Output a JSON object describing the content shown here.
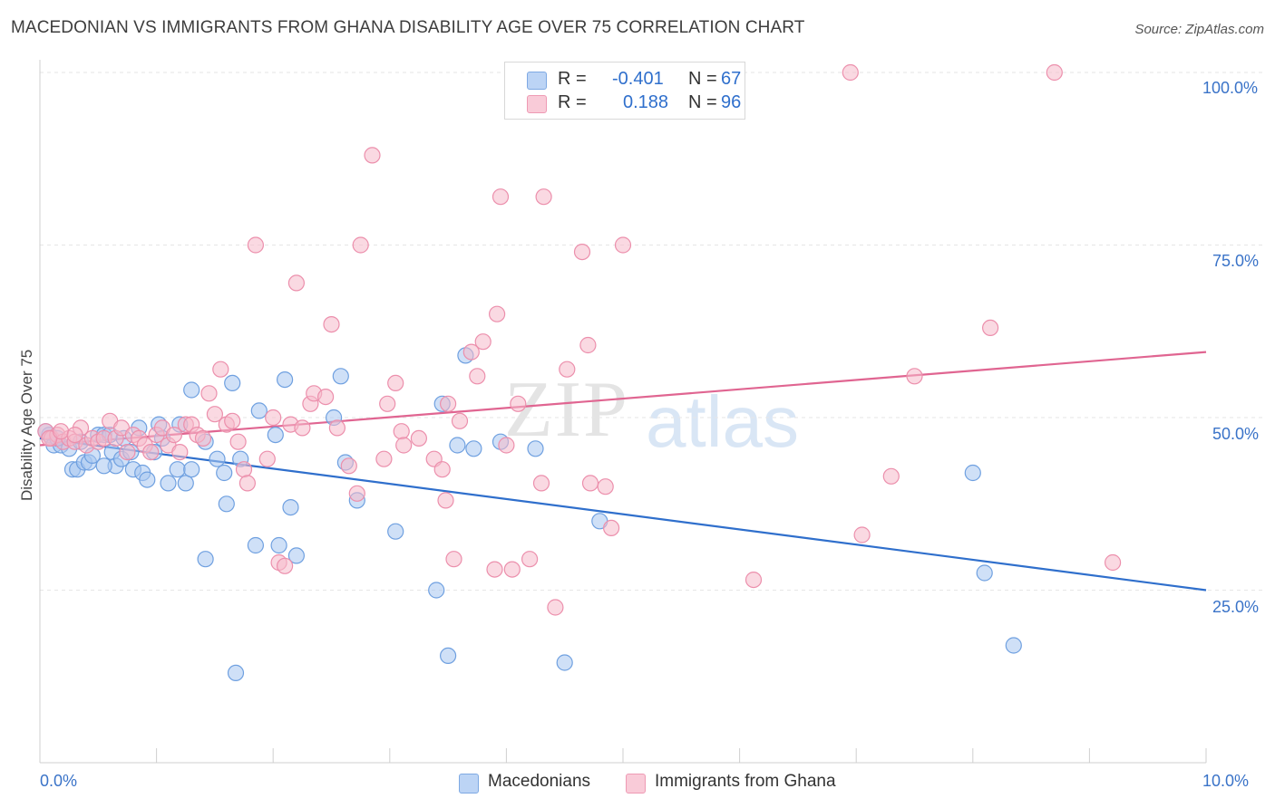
{
  "header": {
    "title": "MACEDONIAN VS IMMIGRANTS FROM GHANA DISABILITY AGE OVER 75 CORRELATION CHART",
    "source": "Source: ZipAtlas.com"
  },
  "watermark": {
    "part1": "ZIP",
    "part2": "atlas"
  },
  "legend": {
    "rows": [
      {
        "r_label": "R =",
        "r_value": "-0.401",
        "n_label": "N =",
        "n_value": "67",
        "color": "#a8c6f0"
      },
      {
        "r_label": "R =",
        "r_value": "0.188",
        "n_label": "N =",
        "n_value": "96",
        "color": "#f5b9cb"
      }
    ]
  },
  "bottom_legend": {
    "items": [
      {
        "label": "Macedonians",
        "color": "#a8c6f0"
      },
      {
        "label": "Immigrants from Ghana",
        "color": "#f5b9cb"
      }
    ]
  },
  "axes": {
    "ylabel": "Disability Age Over 75",
    "x_min_label": "0.0%",
    "x_max_label": "10.0%",
    "y_ticks": [
      "100.0%",
      "75.0%",
      "50.0%",
      "25.0%"
    ]
  },
  "chart_data": {
    "type": "scatter",
    "title": "MACEDONIAN VS IMMIGRANTS FROM GHANA DISABILITY AGE OVER 75 CORRELATION CHART",
    "xlabel": "",
    "ylabel": "Disability Age Over 75",
    "xlim": [
      0,
      10
    ],
    "ylim": [
      0,
      100
    ],
    "x_unit": "%",
    "y_unit": "%",
    "grid": true,
    "legend_position": "bottom",
    "series": [
      {
        "name": "Macedonians",
        "color": "#6fa0e0",
        "fill": "#a8c6f0",
        "trend": {
          "x": [
            0,
            10
          ],
          "y": [
            47,
            25
          ],
          "color": "#2f6fcc"
        },
        "points": [
          [
            0.08,
            47.5
          ],
          [
            0.12,
            46
          ],
          [
            0.18,
            46
          ],
          [
            0.25,
            45.5
          ],
          [
            0.28,
            42.5
          ],
          [
            0.32,
            42.5
          ],
          [
            0.38,
            43.5
          ],
          [
            0.42,
            43.5
          ],
          [
            0.45,
            44.5
          ],
          [
            0.5,
            47.5
          ],
          [
            0.55,
            47.5
          ],
          [
            0.6,
            47.5
          ],
          [
            0.62,
            45
          ],
          [
            0.65,
            43
          ],
          [
            0.7,
            44
          ],
          [
            0.72,
            47
          ],
          [
            0.78,
            45
          ],
          [
            0.8,
            42.5
          ],
          [
            0.85,
            48.5
          ],
          [
            0.88,
            42
          ],
          [
            0.92,
            41
          ],
          [
            0.98,
            45
          ],
          [
            1.02,
            49
          ],
          [
            1.05,
            47
          ],
          [
            1.1,
            40.5
          ],
          [
            1.18,
            42.5
          ],
          [
            1.2,
            49
          ],
          [
            1.25,
            40.5
          ],
          [
            1.3,
            42.5
          ],
          [
            1.3,
            54
          ],
          [
            1.42,
            46.5
          ],
          [
            1.42,
            29.5
          ],
          [
            1.52,
            44
          ],
          [
            1.58,
            42
          ],
          [
            1.6,
            37.5
          ],
          [
            1.65,
            55
          ],
          [
            1.68,
            13
          ],
          [
            1.72,
            44
          ],
          [
            1.85,
            31.5
          ],
          [
            1.88,
            51
          ],
          [
            2.02,
            47.5
          ],
          [
            2.05,
            31.5
          ],
          [
            2.1,
            55.5
          ],
          [
            2.15,
            37
          ],
          [
            2.2,
            30
          ],
          [
            2.52,
            50
          ],
          [
            2.58,
            56
          ],
          [
            2.62,
            43.5
          ],
          [
            2.72,
            38
          ],
          [
            3.05,
            33.5
          ],
          [
            3.4,
            25
          ],
          [
            3.45,
            52
          ],
          [
            3.5,
            15.5
          ],
          [
            3.58,
            46
          ],
          [
            3.72,
            45.5
          ],
          [
            3.65,
            59
          ],
          [
            3.95,
            46.5
          ],
          [
            4.25,
            45.5
          ],
          [
            4.5,
            14.5
          ],
          [
            4.8,
            35
          ],
          [
            8.0,
            42
          ],
          [
            8.1,
            27.5
          ],
          [
            8.35,
            17
          ],
          [
            0.05,
            48
          ],
          [
            0.35,
            46.5
          ],
          [
            0.15,
            47
          ],
          [
            0.55,
            43
          ]
        ]
      },
      {
        "name": "Immigrants from Ghana",
        "color": "#ec8fac",
        "fill": "#f5b9cb",
        "trend": {
          "x": [
            0,
            10
          ],
          "y": [
            46,
            59.5
          ],
          "color": "#e06591"
        },
        "points": [
          [
            0.05,
            48
          ],
          [
            0.1,
            47
          ],
          [
            0.15,
            47.5
          ],
          [
            0.2,
            46.5
          ],
          [
            0.25,
            47
          ],
          [
            0.3,
            46.5
          ],
          [
            0.35,
            48.5
          ],
          [
            0.4,
            46
          ],
          [
            0.45,
            47
          ],
          [
            0.5,
            46.5
          ],
          [
            0.55,
            47
          ],
          [
            0.6,
            49.5
          ],
          [
            0.65,
            47
          ],
          [
            0.7,
            48.5
          ],
          [
            0.75,
            45
          ],
          [
            0.8,
            47.5
          ],
          [
            0.85,
            47
          ],
          [
            0.9,
            46
          ],
          [
            0.95,
            45
          ],
          [
            1.0,
            47.5
          ],
          [
            1.05,
            48.5
          ],
          [
            1.1,
            46
          ],
          [
            1.15,
            47.5
          ],
          [
            1.2,
            45
          ],
          [
            1.25,
            49
          ],
          [
            1.3,
            49
          ],
          [
            1.35,
            47.5
          ],
          [
            1.4,
            47
          ],
          [
            1.45,
            53.5
          ],
          [
            1.5,
            50.5
          ],
          [
            1.55,
            57
          ],
          [
            1.6,
            49
          ],
          [
            1.65,
            49.5
          ],
          [
            1.7,
            46.5
          ],
          [
            1.75,
            42.5
          ],
          [
            1.78,
            40.5
          ],
          [
            1.85,
            75
          ],
          [
            1.95,
            44
          ],
          [
            2.0,
            50
          ],
          [
            2.05,
            29
          ],
          [
            2.1,
            28.5
          ],
          [
            2.15,
            49
          ],
          [
            2.2,
            69.5
          ],
          [
            2.25,
            48.5
          ],
          [
            2.32,
            52
          ],
          [
            2.35,
            53.5
          ],
          [
            2.45,
            53
          ],
          [
            2.5,
            63.5
          ],
          [
            2.55,
            48.5
          ],
          [
            2.65,
            43
          ],
          [
            2.72,
            39
          ],
          [
            2.75,
            75
          ],
          [
            2.85,
            88
          ],
          [
            2.95,
            44
          ],
          [
            2.98,
            52
          ],
          [
            3.05,
            55
          ],
          [
            3.1,
            48
          ],
          [
            3.12,
            46
          ],
          [
            3.25,
            47
          ],
          [
            3.38,
            44
          ],
          [
            3.45,
            42.5
          ],
          [
            3.48,
            38
          ],
          [
            3.5,
            52
          ],
          [
            3.55,
            29.5
          ],
          [
            3.6,
            49.5
          ],
          [
            3.7,
            59.5
          ],
          [
            3.75,
            56
          ],
          [
            3.8,
            61
          ],
          [
            3.9,
            28
          ],
          [
            3.92,
            65
          ],
          [
            3.95,
            82
          ],
          [
            4.0,
            46
          ],
          [
            4.05,
            28
          ],
          [
            4.1,
            52
          ],
          [
            4.2,
            29.5
          ],
          [
            4.3,
            40.5
          ],
          [
            4.32,
            82
          ],
          [
            4.42,
            22.5
          ],
          [
            4.52,
            57
          ],
          [
            4.65,
            74
          ],
          [
            4.7,
            60.5
          ],
          [
            4.72,
            40.5
          ],
          [
            4.85,
            40
          ],
          [
            4.9,
            34
          ],
          [
            5.0,
            75
          ],
          [
            6.12,
            26.5
          ],
          [
            6.95,
            100
          ],
          [
            7.05,
            33
          ],
          [
            7.3,
            41.5
          ],
          [
            7.5,
            56
          ],
          [
            8.15,
            63
          ],
          [
            8.7,
            100
          ],
          [
            9.2,
            29
          ],
          [
            0.08,
            47
          ],
          [
            0.18,
            48
          ],
          [
            0.3,
            47.5
          ]
        ]
      }
    ]
  }
}
